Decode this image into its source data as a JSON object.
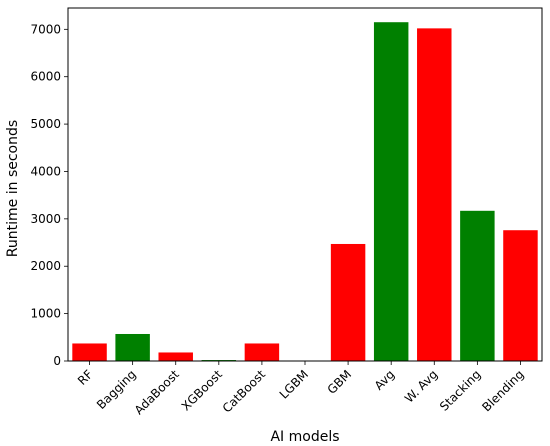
{
  "chart_data": {
    "type": "bar",
    "xlabel": "AI models",
    "ylabel": "Runtime in seconds",
    "categories": [
      "RF",
      "Bagging",
      "AdaBoost",
      "XGBoost",
      "CatBoost",
      "LGBM",
      "GBM",
      "Avg",
      "W. Avg",
      "Stacking",
      "Blending"
    ],
    "values": [
      370,
      570,
      180,
      20,
      370,
      0,
      2470,
      7150,
      7020,
      3170,
      2760
    ],
    "bar_colors": [
      "#ff0000",
      "#008000",
      "#ff0000",
      "#008000",
      "#ff0000",
      "#008000",
      "#ff0000",
      "#008000",
      "#ff0000",
      "#008000",
      "#ff0000"
    ],
    "ylim": [
      0,
      7450
    ],
    "yticks": [
      0,
      1000,
      2000,
      3000,
      4000,
      5000,
      6000,
      7000
    ],
    "ytick_labels": [
      "0",
      "1000",
      "2000",
      "3000",
      "4000",
      "5000",
      "6000",
      "7000"
    ],
    "xtick_rotation_deg": 45,
    "grid": false
  }
}
